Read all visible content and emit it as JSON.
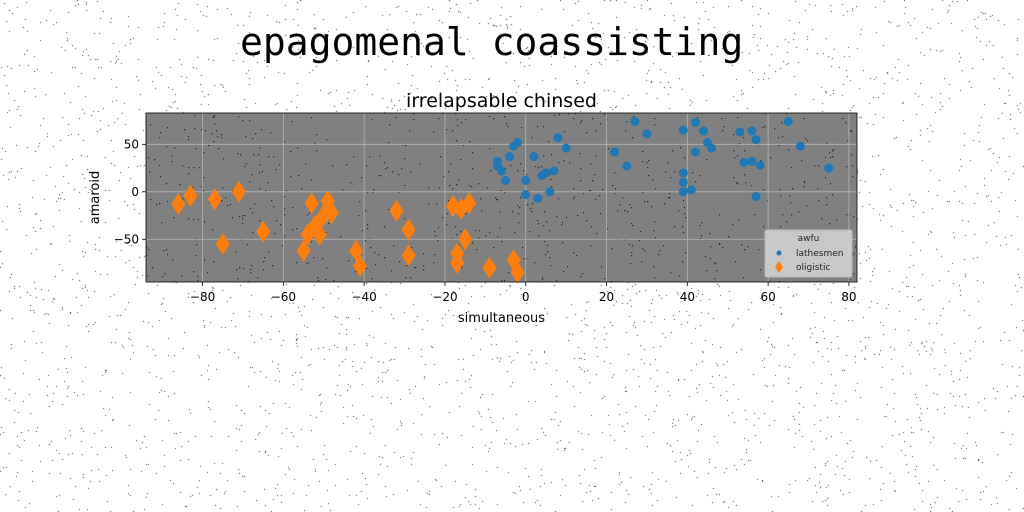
{
  "page": {
    "suptitle": "epagomenal coassisting"
  },
  "chart_data": {
    "type": "scatter",
    "title": "irrelapsable chinsed",
    "xlabel": "simultaneous",
    "ylabel": "amaroid",
    "xlim": [
      -94,
      82
    ],
    "ylim": [
      -95,
      83
    ],
    "xticks": [
      -80,
      -60,
      -40,
      -20,
      0,
      20,
      40,
      60,
      80
    ],
    "yticks": [
      -50,
      0,
      50
    ],
    "grid": true,
    "background_color": "#808080",
    "legend": {
      "title": "awfu",
      "placement": "lower-right",
      "entries": [
        "lathesmen",
        "oligistic"
      ]
    },
    "series": [
      {
        "name": "lathesmen",
        "marker": "circle",
        "color": "#1f77b4",
        "points": [
          [
            -7,
            32
          ],
          [
            -7,
            27
          ],
          [
            -6,
            22
          ],
          [
            -5,
            12
          ],
          [
            -4,
            37
          ],
          [
            -3,
            48
          ],
          [
            -2,
            52
          ],
          [
            0,
            -3
          ],
          [
            0,
            12
          ],
          [
            2,
            37
          ],
          [
            3,
            -7
          ],
          [
            4,
            17
          ],
          [
            5,
            20
          ],
          [
            6,
            0
          ],
          [
            7,
            22
          ],
          [
            8,
            57
          ],
          [
            10,
            46
          ],
          [
            22,
            42
          ],
          [
            25,
            27
          ],
          [
            27,
            74
          ],
          [
            30,
            61
          ],
          [
            39,
            65
          ],
          [
            39,
            20
          ],
          [
            39,
            10
          ],
          [
            39,
            0
          ],
          [
            41,
            2
          ],
          [
            42,
            73
          ],
          [
            42,
            42
          ],
          [
            44,
            64
          ],
          [
            45,
            52
          ],
          [
            46,
            46
          ],
          [
            53,
            63
          ],
          [
            54,
            31
          ],
          [
            56,
            32
          ],
          [
            56,
            64
          ],
          [
            57,
            55
          ],
          [
            57,
            -5
          ],
          [
            58,
            28
          ],
          [
            65,
            74
          ],
          [
            68,
            48
          ],
          [
            75,
            25
          ]
        ]
      },
      {
        "name": "oligistic",
        "marker": "diamond",
        "color": "#ff7f0e",
        "points": [
          [
            -86,
            -13
          ],
          [
            -83,
            -4
          ],
          [
            -77,
            -8
          ],
          [
            -75,
            -55
          ],
          [
            -71,
            0
          ],
          [
            -65,
            -42
          ],
          [
            -55,
            -62
          ],
          [
            -54,
            -45
          ],
          [
            -53,
            -12
          ],
          [
            -52,
            -35
          ],
          [
            -51,
            -45
          ],
          [
            -50,
            -25
          ],
          [
            -49,
            -10
          ],
          [
            -48,
            -22
          ],
          [
            -42,
            -62
          ],
          [
            -41,
            -78
          ],
          [
            -32,
            -20
          ],
          [
            -29,
            -40
          ],
          [
            -29,
            -67
          ],
          [
            -18,
            -15
          ],
          [
            -17,
            -65
          ],
          [
            -17,
            -75
          ],
          [
            -16,
            -18
          ],
          [
            -15,
            -50
          ],
          [
            -14,
            -12
          ],
          [
            -9,
            -80
          ],
          [
            -3,
            -72
          ],
          [
            -2,
            -85
          ]
        ]
      }
    ]
  }
}
